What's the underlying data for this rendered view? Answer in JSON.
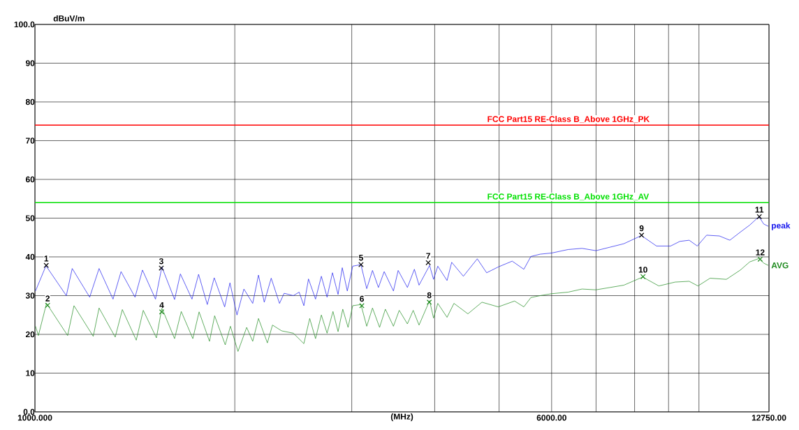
{
  "chart_data": {
    "type": "line",
    "xlabel": "(MHz)",
    "ylabel": "dBuV/m",
    "log": "x",
    "grid": true,
    "xlim": [
      1000,
      12750
    ],
    "ylim": [
      0,
      100
    ],
    "xticks": [
      {
        "value": 1000,
        "label": "1000.000"
      },
      {
        "value": 2000,
        "label": null
      },
      {
        "value": 3000,
        "label": null
      },
      {
        "value": 4000,
        "label": null
      },
      {
        "value": 5000,
        "label": null
      },
      {
        "value": 6000,
        "label": "6000.00"
      },
      {
        "value": 7000,
        "label": null
      },
      {
        "value": 8000,
        "label": null
      },
      {
        "value": 9000,
        "label": null
      },
      {
        "value": 10000,
        "label": null
      },
      {
        "value": 12750,
        "label": "12750.00"
      }
    ],
    "yticks": [
      {
        "value": 0,
        "label": "0.0"
      },
      10,
      20,
      30,
      40,
      50,
      60,
      70,
      80,
      90,
      {
        "value": 100,
        "label": "100.0"
      }
    ],
    "ref_lines": [
      {
        "axis": "y",
        "value": 74,
        "label": "FCC Part15 RE-Class B_Above 1GHz_PK",
        "color": "#ff0000"
      },
      {
        "axis": "y",
        "value": 54,
        "label": "FCC Part15 RE-Class B_Above 1GHz_AV",
        "color": "#00e000"
      }
    ],
    "series": [
      {
        "name": "peak",
        "color": "#1a1aee",
        "x": [
          1002,
          1039,
          1115,
          1138,
          1209,
          1249,
          1311,
          1348,
          1415,
          1452,
          1519,
          1553,
          1623,
          1656,
          1724,
          1764,
          1818,
          1862,
          1931,
          1967,
          2015,
          2064,
          2128,
          2171,
          2215,
          2269,
          2335,
          2373,
          2450,
          2500,
          2541,
          2582,
          2646,
          2700,
          2754,
          2806,
          2861,
          2903,
          2954,
          3010,
          3097,
          3160,
          3224,
          3291,
          3357,
          3467,
          3524,
          3639,
          3728,
          3789,
          3930,
          3985,
          4043,
          4175,
          4243,
          4418,
          4636,
          4789,
          4986,
          5233,
          5449,
          5583,
          5765,
          6003,
          6353,
          6667,
          6998,
          7345,
          7709,
          8191,
          8632,
          9063,
          9359,
          9667,
          9943,
          10269,
          10735,
          11131,
          11544,
          11924,
          12315,
          12515,
          12720
        ],
        "values": [
          31.2,
          37.7,
          30.0,
          37.0,
          29.6,
          37.0,
          29.1,
          36.2,
          29.6,
          36.6,
          29.1,
          37.4,
          29.0,
          35.6,
          29.1,
          35.5,
          27.7,
          34.6,
          27.1,
          33.3,
          25.0,
          31.7,
          28.0,
          35.3,
          28.3,
          34.5,
          28.0,
          30.6,
          30.0,
          30.9,
          27.4,
          34.3,
          29.1,
          35.0,
          29.6,
          35.9,
          30.3,
          37.2,
          31.2,
          37.6,
          38.0,
          31.8,
          36.5,
          32.1,
          36.2,
          31.2,
          36.5,
          32.1,
          36.8,
          32.7,
          37.8,
          34.2,
          37.6,
          33.9,
          38.6,
          35.0,
          39.5,
          35.9,
          37.4,
          38.9,
          36.8,
          40.1,
          40.7,
          41.0,
          41.9,
          42.2,
          41.6,
          42.5,
          43.4,
          45.5,
          42.8,
          42.8,
          44.0,
          44.3,
          42.8,
          45.6,
          45.4,
          44.3,
          46.4,
          48.2,
          50.4,
          48.5,
          47.9
        ]
      },
      {
        "name": "AVG",
        "color": "#1e8a1e",
        "x": [
          1002,
          1012,
          1041,
          1120,
          1145,
          1224,
          1249,
          1321,
          1354,
          1421,
          1456,
          1524,
          1553,
          1623,
          1661,
          1729,
          1767,
          1832,
          1865,
          1935,
          1970,
          2022,
          2084,
          2128,
          2171,
          2239,
          2279,
          2353,
          2450,
          2541,
          2593,
          2646,
          2700,
          2754,
          2811,
          2861,
          2908,
          2962,
          3010,
          3097,
          3160,
          3224,
          3304,
          3371,
          3467,
          3537,
          3639,
          3713,
          3789,
          3930,
          3985,
          4043,
          4175,
          4276,
          4488,
          4712,
          4986,
          5276,
          5449,
          5583,
          5765,
          6003,
          6353,
          6667,
          6998,
          7345,
          7709,
          8229,
          8701,
          9209,
          9667,
          9966,
          10395,
          10998,
          11544,
          11924,
          12315,
          12515,
          12720
        ],
        "values": [
          22.1,
          19.7,
          28.0,
          19.7,
          27.4,
          19.5,
          26.8,
          19.3,
          26.4,
          18.5,
          26.2,
          19.1,
          26.8,
          18.9,
          25.9,
          18.9,
          25.8,
          18.2,
          24.8,
          17.3,
          22.1,
          15.6,
          21.8,
          18.2,
          24.1,
          17.8,
          22.4,
          20.9,
          20.3,
          17.6,
          24.1,
          18.9,
          25.0,
          20.3,
          25.9,
          20.7,
          26.5,
          21.8,
          27.4,
          27.7,
          22.1,
          26.8,
          21.8,
          26.5,
          22.1,
          26.2,
          22.7,
          26.2,
          22.4,
          28.7,
          24.2,
          28.0,
          24.4,
          28.0,
          25.3,
          28.3,
          27.1,
          28.6,
          27.1,
          29.5,
          30.0,
          30.5,
          30.9,
          31.7,
          31.5,
          32.1,
          32.7,
          34.8,
          32.5,
          33.5,
          33.7,
          32.5,
          34.5,
          34.2,
          36.6,
          38.7,
          39.6,
          38.4,
          37.8
        ]
      },
      {
        "type": "scatter",
        "marker": "cross",
        "color": "#000000",
        "x": [
          1040,
          1550,
          3098,
          3912,
          8196,
          12329
        ],
        "values": [
          37.8,
          37.1,
          38.0,
          38.5,
          45.6,
          50.4
        ]
      },
      {
        "type": "scatter",
        "marker": "cross",
        "color": "#1e8a1e",
        "x": [
          1045,
          1552,
          3107,
          3926,
          8237,
          12366
        ],
        "values": [
          27.5,
          25.8,
          27.4,
          28.3,
          34.9,
          39.4
        ]
      }
    ],
    "annotations": [
      {
        "text": "1",
        "x": 1040,
        "y": 37.8
      },
      {
        "text": "2",
        "x": 1045,
        "y": 27.5
      },
      {
        "text": "3",
        "x": 1550,
        "y": 37.1
      },
      {
        "text": "4",
        "x": 1552,
        "y": 25.8
      },
      {
        "text": "5",
        "x": 3098,
        "y": 38.0
      },
      {
        "text": "6",
        "x": 3107,
        "y": 27.4
      },
      {
        "text": "7",
        "x": 3912,
        "y": 38.5
      },
      {
        "text": "8",
        "x": 3926,
        "y": 28.3
      },
      {
        "text": "9",
        "x": 8196,
        "y": 45.6
      },
      {
        "text": "10",
        "x": 8237,
        "y": 34.9
      },
      {
        "text": "11",
        "x": 12329,
        "y": 50.4
      },
      {
        "text": "12",
        "x": 12366,
        "y": 39.4
      }
    ]
  }
}
